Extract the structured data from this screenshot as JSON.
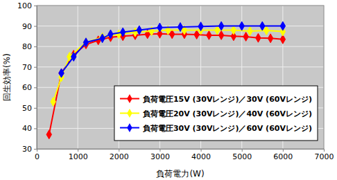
{
  "chart_data": {
    "type": "line",
    "x_label": "負荷電力(W)",
    "y_label": "回生効率(%)",
    "xlim": [
      0,
      7000
    ],
    "xticks": [
      0,
      1000,
      2000,
      3000,
      4000,
      5000,
      6000,
      7000
    ],
    "ylim": [
      30,
      100
    ],
    "yticks": [
      30,
      40,
      50,
      60,
      70,
      80,
      90,
      100
    ],
    "grid": true,
    "legend": "lower right",
    "marker": "diamond",
    "line_style": "solid",
    "series": [
      {
        "name": "負荷電圧15V (30Vレンジ)／30V (60Vレンジ)",
        "color": "#ff0000",
        "x": [
          300,
          600,
          900,
          1200,
          1500,
          1800,
          2100,
          2400,
          2700,
          3000,
          3300,
          3600,
          3900,
          4200,
          4500,
          4800,
          5100,
          5400,
          5700,
          6000
        ],
        "values": [
          37,
          67,
          76,
          81,
          83,
          84.5,
          85,
          85.5,
          86,
          86.2,
          86,
          86,
          85.8,
          85.5,
          85.5,
          85,
          84.8,
          84.2,
          84,
          83.5
        ]
      },
      {
        "name": "負荷電圧20V (30Vレンジ)／40V (60Vレンジ)",
        "color": "#ffff00",
        "x": [
          400,
          600,
          800,
          1200,
          1600,
          2000,
          2400,
          2800,
          3200,
          3600,
          4000,
          4400,
          4800,
          5200,
          5600,
          6000
        ],
        "values": [
          53,
          65,
          75,
          82,
          84.5,
          86,
          87,
          87.5,
          88,
          88,
          88,
          88,
          88,
          87.5,
          87.8,
          87.3
        ]
      },
      {
        "name": "負荷電圧30V (30Vレンジ)／60V (60Vレンジ)",
        "color": "#0000ff",
        "x": [
          600,
          900,
          1200,
          1600,
          1800,
          2100,
          2500,
          3000,
          3500,
          4000,
          4500,
          5000,
          5500,
          6000
        ],
        "values": [
          67,
          75,
          82,
          84,
          86,
          87,
          88,
          89.3,
          89.5,
          89.8,
          90,
          90,
          90,
          90
        ]
      }
    ]
  }
}
